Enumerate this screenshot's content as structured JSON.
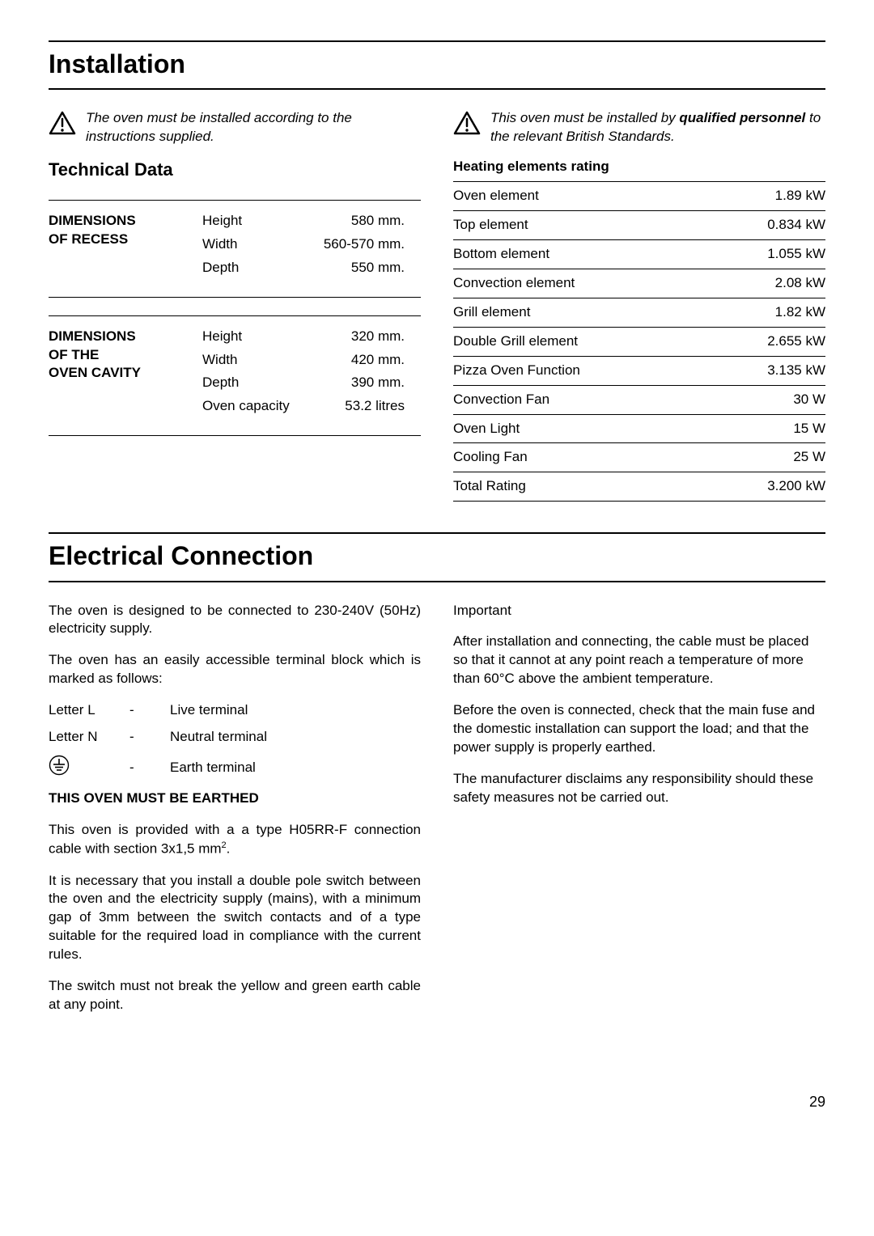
{
  "section1_title": "Installation",
  "warn1_text": "The oven must be installed according to the instructions supplied.",
  "warn2_pre": "This oven must be installed by ",
  "warn2_bold": "qualified personnel",
  "warn2_post": " to the relevant British Standards.",
  "tech_title": "Technical Data",
  "dim_recess_label_l1": "DIMENSIONS",
  "dim_recess_label_l2": "OF RECESS",
  "recess": [
    {
      "k": "Height",
      "v": "580 mm."
    },
    {
      "k": "Width",
      "v": "560-570 mm."
    },
    {
      "k": "Depth",
      "v": "550 mm."
    }
  ],
  "dim_cavity_label_l1": "DIMENSIONS",
  "dim_cavity_label_l2": "OF THE",
  "dim_cavity_label_l3": "OVEN CAVITY",
  "cavity": [
    {
      "k": "Height",
      "v": "320 mm."
    },
    {
      "k": "Width",
      "v": "420 mm."
    },
    {
      "k": "Depth",
      "v": "390 mm."
    },
    {
      "k": "Oven capacity",
      "v": "53.2 litres"
    }
  ],
  "heat_title": "Heating elements rating",
  "heat_rows": [
    {
      "n": "Oven element",
      "v": "1.89 kW"
    },
    {
      "n": "Top element",
      "v": "0.834 kW"
    },
    {
      "n": "Bottom element",
      "v": "1.055 kW"
    },
    {
      "n": "Convection element",
      "v": "2.08 kW"
    },
    {
      "n": "Grill element",
      "v": "1.82 kW"
    },
    {
      "n": "Double Grill element",
      "v": "2.655 kW"
    },
    {
      "n": "Pizza Oven Function",
      "v": "3.135 kW"
    },
    {
      "n": "Convection Fan",
      "v": "30 W"
    },
    {
      "n": "Oven Light",
      "v": "15 W"
    },
    {
      "n": "Cooling Fan",
      "v": "25 W"
    },
    {
      "n": "Total Rating",
      "v": "3.200 kW"
    }
  ],
  "section2_title": "Electrical Connection",
  "ec_p1": "The oven is designed to be connected to 230-240V (50Hz) electricity supply.",
  "ec_p2": "The oven has an easily accessible terminal block which is marked as follows:",
  "term_rows": [
    {
      "a": "Letter L",
      "b": "-",
      "c": "Live terminal"
    },
    {
      "a": "Letter N",
      "b": "-",
      "c": "Neutral terminal"
    }
  ],
  "term_earth_b": "-",
  "term_earth_c": "Earth terminal",
  "earthed_text": "THIS OVEN MUST BE EARTHED",
  "ec_p3_pre": "This oven is provided with a a type H05RR-F connection cable with section 3x1,5 mm",
  "ec_p3_sup": "2",
  "ec_p3_post": ".",
  "ec_p4": "It is necessary that you install a double pole switch between the oven and the electricity supply (mains), with a minimum gap of 3mm between the switch contacts and of a type suitable for the required load in compliance with the current rules.",
  "ec_p5": "The switch must not break the yellow and green earth cable at any point.",
  "important_label": "Important",
  "ec_r1": "After installation and connecting, the cable must be placed so that it cannot at any point reach a temperature of more than 60°C above the ambient temperature.",
  "ec_r2": "Before the oven is connected, check that the main fuse and the domestic installation can support the load; and that the power supply is properly earthed.",
  "ec_r3": "The manufacturer disclaims any responsibility should these safety measures not be carried out.",
  "page_number": "29"
}
